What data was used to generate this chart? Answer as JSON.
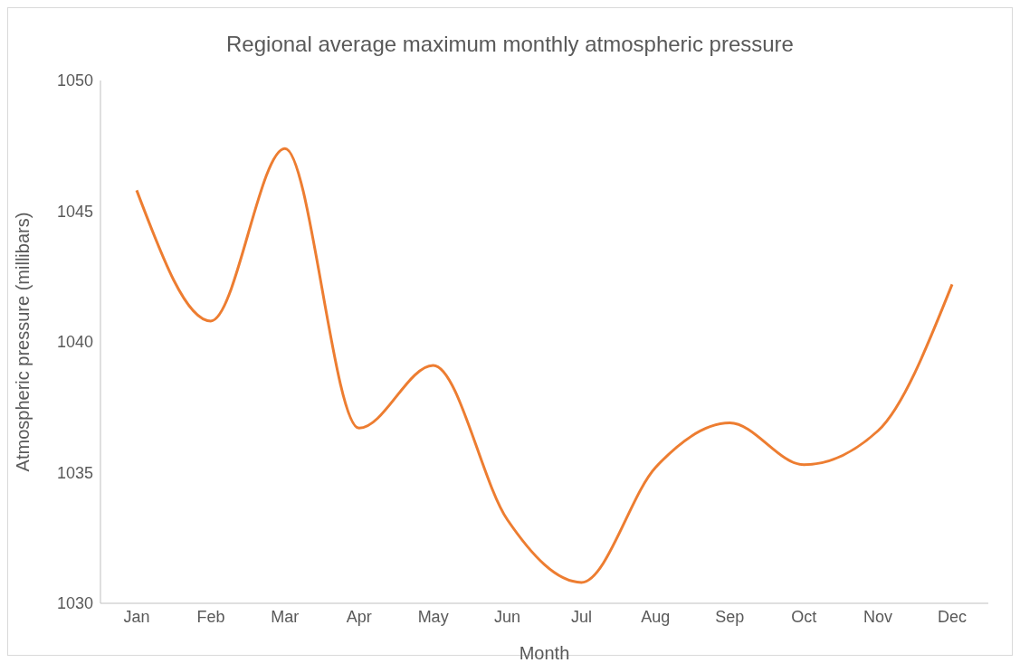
{
  "chart_data": {
    "type": "line",
    "title": "Regional average maximum monthly atmospheric pressure",
    "xlabel": "Month",
    "ylabel": "Atmospheric pressure (millibars)",
    "categories": [
      "Jan",
      "Feb",
      "Mar",
      "Apr",
      "May",
      "Jun",
      "Jul",
      "Aug",
      "Sep",
      "Oct",
      "Nov",
      "Dec"
    ],
    "series": [
      {
        "color": "#ed7d31",
        "values": [
          1045.8,
          1040.8,
          1047.4,
          1036.7,
          1039.1,
          1033.2,
          1030.8,
          1035.2,
          1036.9,
          1035.3,
          1036.6,
          1042.2
        ]
      }
    ],
    "ylim": [
      1030,
      1050
    ],
    "yticks": [
      1030,
      1035,
      1040,
      1045,
      1050
    ],
    "grid": false,
    "legend": false,
    "marker": "none",
    "line_style": "solid"
  }
}
